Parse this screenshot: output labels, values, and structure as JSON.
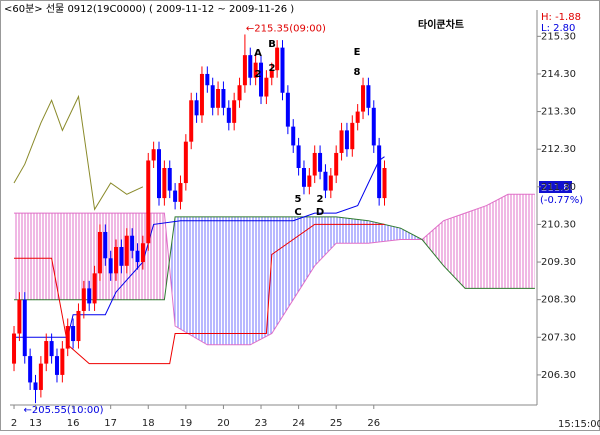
{
  "chart_data": {
    "type": "candlestick",
    "title": "<60분> 선물 0912(19C0000)  ( 2009-11-12 ~ 2009-11-26 )",
    "brand": "타이쿤차트",
    "high_change": "H: -1.88",
    "low_change": "L: 2.80",
    "max_label": "←215.35(09:00)",
    "min_label": "←205.55(10:00)",
    "last_price": "211.80",
    "last_change": "(-0.77%)",
    "time_label": "15:15:00",
    "annotations": [
      "A",
      "2",
      "B",
      "2",
      "E",
      "8",
      "5",
      "C",
      "2",
      "D"
    ],
    "x": [
      0,
      1,
      2,
      3,
      4,
      5,
      6,
      7,
      8,
      9,
      10,
      11,
      12,
      13,
      14,
      15,
      16,
      17,
      18,
      19,
      20,
      21,
      22,
      23,
      24,
      25,
      26,
      27,
      28,
      29,
      30,
      31,
      32,
      33,
      34,
      35,
      36,
      37,
      38,
      39,
      40,
      41,
      42,
      43,
      44,
      45,
      46,
      47,
      48,
      49,
      50,
      51,
      52,
      53,
      54,
      55,
      56,
      57,
      58,
      59,
      60,
      61,
      62,
      63,
      64,
      65,
      66,
      67,
      68,
      69
    ],
    "open": [
      206.6,
      207.4,
      208.3,
      206.8,
      206.1,
      205.9,
      206.6,
      207.2,
      206.8,
      206.3,
      207.0,
      207.6,
      207.2,
      208.0,
      208.6,
      208.2,
      209.0,
      210.1,
      209.4,
      209.0,
      209.7,
      209.2,
      210.0,
      209.6,
      209.3,
      209.8,
      212.0,
      212.3,
      211.0,
      211.8,
      211.2,
      210.9,
      211.4,
      212.5,
      213.6,
      213.2,
      214.3,
      214.0,
      213.4,
      213.9,
      213.4,
      213.0,
      213.6,
      214.0,
      214.8,
      214.2,
      214.6,
      213.7,
      214.2,
      214.4,
      215.0,
      213.8,
      212.9,
      212.4,
      211.8,
      211.3,
      211.6,
      212.2,
      211.7,
      211.2,
      211.6,
      212.2,
      212.8,
      212.3,
      213.0,
      213.3,
      214.0,
      213.4,
      212.4,
      211.0
    ],
    "high": [
      207.6,
      208.5,
      208.5,
      207.0,
      206.3,
      206.8,
      207.4,
      207.4,
      207.0,
      207.2,
      207.8,
      207.8,
      208.2,
      208.8,
      208.8,
      209.2,
      210.3,
      210.3,
      209.6,
      209.9,
      209.9,
      210.2,
      210.2,
      209.8,
      210.0,
      212.2,
      212.5,
      212.5,
      212.0,
      212.0,
      211.4,
      211.6,
      212.7,
      213.8,
      213.8,
      214.5,
      214.5,
      214.2,
      214.1,
      214.1,
      213.6,
      213.8,
      214.2,
      215.35,
      215.0,
      214.8,
      214.8,
      214.4,
      214.6,
      215.2,
      215.2,
      214.0,
      213.1,
      212.6,
      212.0,
      211.8,
      212.4,
      212.4,
      211.9,
      211.8,
      212.4,
      213.0,
      213.0,
      213.2,
      213.5,
      214.2,
      214.2,
      213.6,
      212.6,
      212.0
    ],
    "low": [
      206.4,
      207.2,
      206.6,
      205.9,
      205.55,
      205.7,
      206.4,
      206.6,
      206.1,
      206.1,
      206.8,
      207.0,
      207.0,
      207.8,
      208.0,
      208.0,
      208.8,
      209.2,
      208.8,
      208.8,
      209.0,
      209.0,
      209.4,
      209.1,
      209.1,
      209.6,
      211.8,
      210.8,
      210.8,
      211.0,
      210.7,
      210.7,
      211.2,
      212.3,
      213.0,
      213.0,
      213.8,
      213.2,
      213.2,
      213.2,
      212.8,
      212.8,
      213.4,
      213.8,
      214.0,
      214.0,
      213.5,
      213.5,
      214.0,
      214.2,
      213.6,
      212.7,
      212.2,
      211.6,
      211.1,
      211.1,
      211.4,
      211.5,
      211.0,
      211.0,
      211.4,
      212.0,
      212.1,
      212.1,
      212.8,
      213.1,
      213.2,
      212.2,
      210.8,
      210.8
    ],
    "close": [
      207.4,
      208.3,
      206.8,
      206.1,
      205.9,
      206.6,
      207.2,
      206.8,
      206.3,
      207.0,
      207.6,
      207.2,
      208.0,
      208.6,
      208.2,
      209.0,
      210.1,
      209.4,
      209.0,
      209.7,
      209.2,
      210.0,
      209.6,
      209.3,
      209.8,
      212.0,
      212.3,
      211.0,
      211.8,
      211.2,
      210.9,
      211.4,
      212.5,
      213.6,
      213.2,
      214.3,
      214.0,
      213.4,
      213.9,
      213.4,
      213.0,
      213.6,
      214.0,
      214.8,
      214.2,
      214.6,
      213.7,
      214.2,
      214.4,
      215.0,
      213.8,
      212.9,
      212.4,
      211.8,
      211.3,
      211.6,
      212.2,
      211.7,
      211.2,
      211.6,
      212.2,
      212.8,
      212.3,
      213.0,
      213.3,
      214.0,
      213.4,
      212.4,
      211.0,
      211.8
    ],
    "up_color": "#ff0000",
    "down_color": "#0000ff",
    "lines": [
      {
        "color": "#0000ee",
        "x": [
          0,
          10,
          11,
          17,
          19,
          24,
          26,
          31,
          52,
          56,
          60,
          64,
          66,
          68,
          69
        ],
        "values": [
          207.3,
          207.3,
          207.9,
          207.9,
          208.5,
          209.3,
          210.3,
          210.4,
          210.4,
          210.6,
          210.6,
          210.8,
          211.4,
          212.0,
          212.1
        ]
      },
      {
        "color": "#ee0000",
        "x": [
          0,
          7,
          10,
          14,
          29,
          30,
          47,
          48,
          56,
          69
        ],
        "values": [
          209.4,
          209.4,
          207.1,
          206.6,
          206.6,
          207.4,
          207.4,
          209.5,
          210.3,
          210.3
        ]
      },
      {
        "color": "#8a8a2a",
        "x": [
          0,
          2,
          5,
          7,
          9,
          12,
          15,
          18,
          21,
          24
        ],
        "values": [
          211.4,
          211.9,
          213.0,
          213.6,
          212.8,
          213.7,
          210.7,
          211.4,
          211.1,
          211.3
        ]
      }
    ],
    "spans": {
      "x": [
        0,
        28,
        30,
        36,
        44,
        48,
        52,
        56,
        60,
        66,
        72,
        76,
        80,
        84,
        88,
        92,
        97
      ],
      "a": [
        210.6,
        210.6,
        207.6,
        207.1,
        207.1,
        207.4,
        208.3,
        209.2,
        209.8,
        209.8,
        209.9,
        209.9,
        210.4,
        210.6,
        210.8,
        211.1,
        211.1
      ],
      "b": [
        208.3,
        208.3,
        210.5,
        210.5,
        210.5,
        210.5,
        210.5,
        210.5,
        210.5,
        210.4,
        210.2,
        209.9,
        209.2,
        208.6,
        208.6,
        208.6,
        208.6
      ],
      "a_color": "#e070c8",
      "b_color": "#2f7a2f",
      "up_color": "#e070c8",
      "down_color": "#7070ff"
    },
    "xlim": [
      -0.75,
      97.4
    ],
    "ylim": [
      205.5,
      216.0
    ],
    "xticks": [
      {
        "value": 0,
        "label": "2"
      },
      {
        "value": 4,
        "label": "13"
      },
      {
        "value": 11,
        "label": "16"
      },
      {
        "value": 18,
        "label": "17"
      },
      {
        "value": 25,
        "label": "18"
      },
      {
        "value": 32,
        "label": "19"
      },
      {
        "value": 39,
        "label": "20"
      },
      {
        "value": 46,
        "label": "23"
      },
      {
        "value": 53,
        "label": "24"
      },
      {
        "value": 60,
        "label": "25"
      },
      {
        "value": 67,
        "label": "26"
      }
    ],
    "yticks": [
      {
        "value": 215.3,
        "label": "215.30"
      },
      {
        "value": 214.3,
        "label": "214.30"
      },
      {
        "value": 213.3,
        "label": "213.30"
      },
      {
        "value": 212.3,
        "label": "212.30"
      },
      {
        "value": 211.3,
        "label": "211.30"
      },
      {
        "value": 210.3,
        "label": "210.30"
      },
      {
        "value": 209.3,
        "label": "209.30"
      },
      {
        "value": 208.3,
        "label": "208.30"
      },
      {
        "value": 207.3,
        "label": "207.30"
      },
      {
        "value": 206.3,
        "label": "206.30"
      }
    ]
  }
}
